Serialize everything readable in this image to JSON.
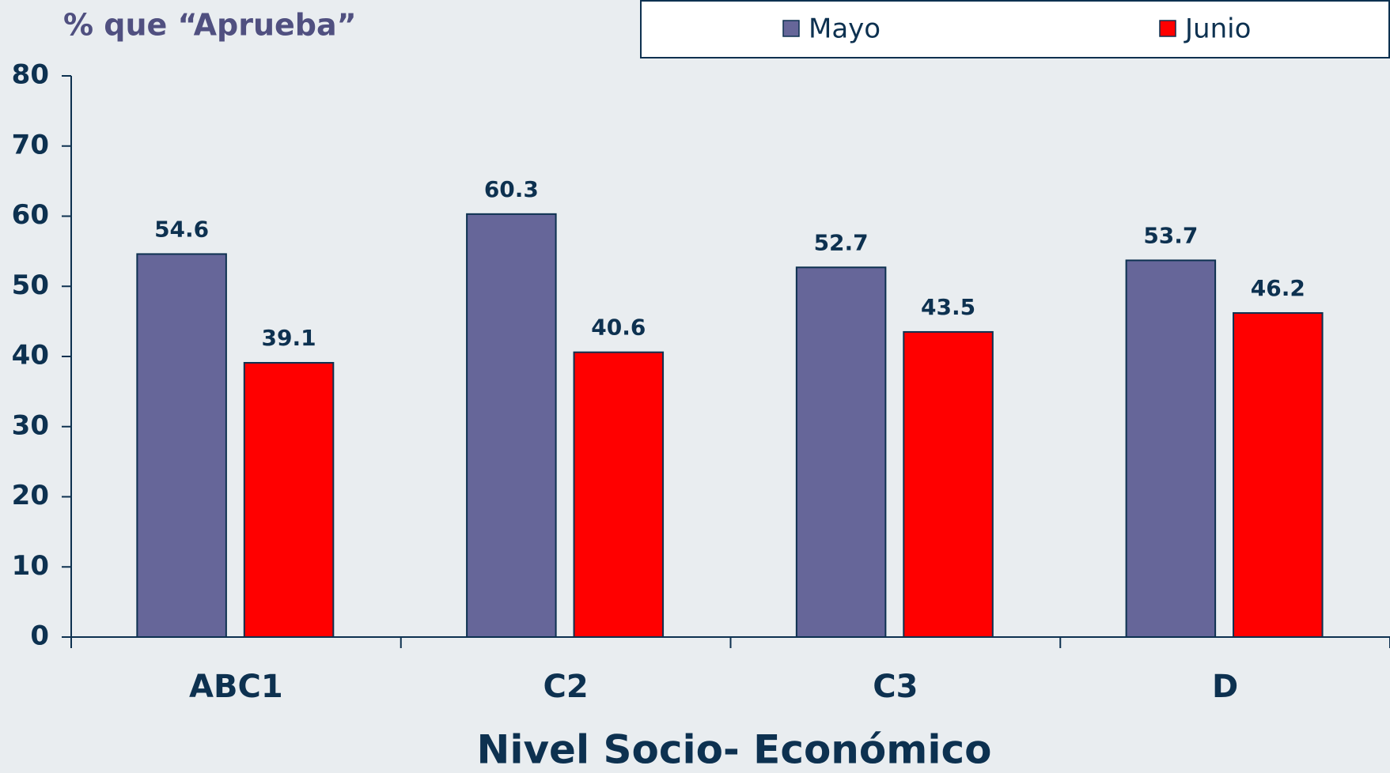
{
  "chart_data": {
    "type": "bar",
    "title": "% que “Aprueba”",
    "x_label": "Nivel Socio- Económico",
    "categories": [
      "ABC1",
      "C2",
      "C3",
      "D"
    ],
    "series": [
      {
        "name": "Mayo",
        "color": "#666699",
        "values": [
          54.6,
          60.3,
          52.7,
          53.7
        ]
      },
      {
        "name": "Junio",
        "color": "#ff0000",
        "values": [
          39.1,
          40.6,
          43.5,
          46.2
        ]
      }
    ],
    "ylim": [
      0,
      80
    ],
    "yticks": [
      0,
      10,
      20,
      30,
      40,
      50,
      60,
      70,
      80
    ],
    "legend": "top-right",
    "grid": false
  }
}
